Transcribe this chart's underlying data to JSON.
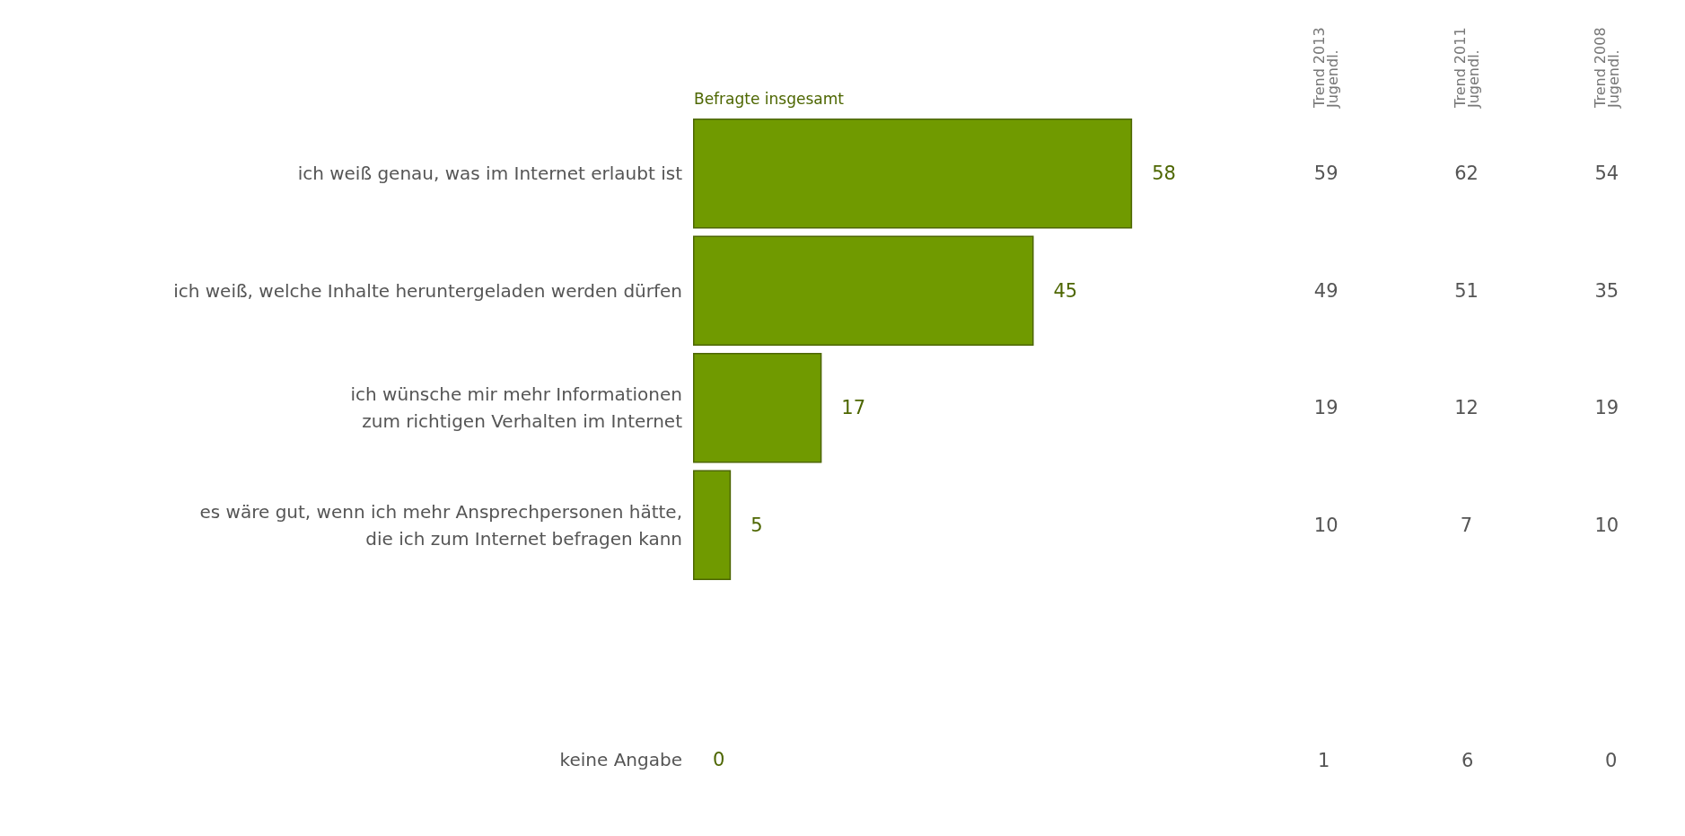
{
  "chart_data": [
    {
      "type": "bar",
      "orientation": "horizontal",
      "categories": [
        "ich weiß genau, was im Internet erlaubt ist",
        "ich weiß, welche Inhalte heruntergeladen werden dürfen",
        "ich wünsche mir mehr Informationen\nzum richtigen Verhalten im Internet",
        "es wäre gut, wenn ich mehr Ansprechpersonen hätte,\ndie ich zum Internet befragen kann",
        null,
        "keine Angabe"
      ],
      "series": [
        {
          "name": "Befragte insgesamt",
          "color": "#709a00",
          "values": [
            58,
            45,
            17,
            5,
            null,
            0
          ]
        }
      ],
      "data_labels": true,
      "legend": "top left"
    },
    {
      "type": "heatmap",
      "categories": [
        "Trend 2013\nJugendl.",
        "Trend 2011\nJugendl.",
        "Trend 2008\nJugendl."
      ],
      "y_categories": [
        null,
        null,
        null,
        null
      ],
      "cells": [
        [
          59,
          62,
          54
        ],
        [
          49,
          51,
          35
        ],
        [
          19,
          12,
          19
        ],
        [
          10,
          7,
          10
        ]
      ],
      "data_labels": true
    },
    {
      "type": "other",
      "annotations": [
        "1",
        "6",
        "0"
      ]
    }
  ]
}
